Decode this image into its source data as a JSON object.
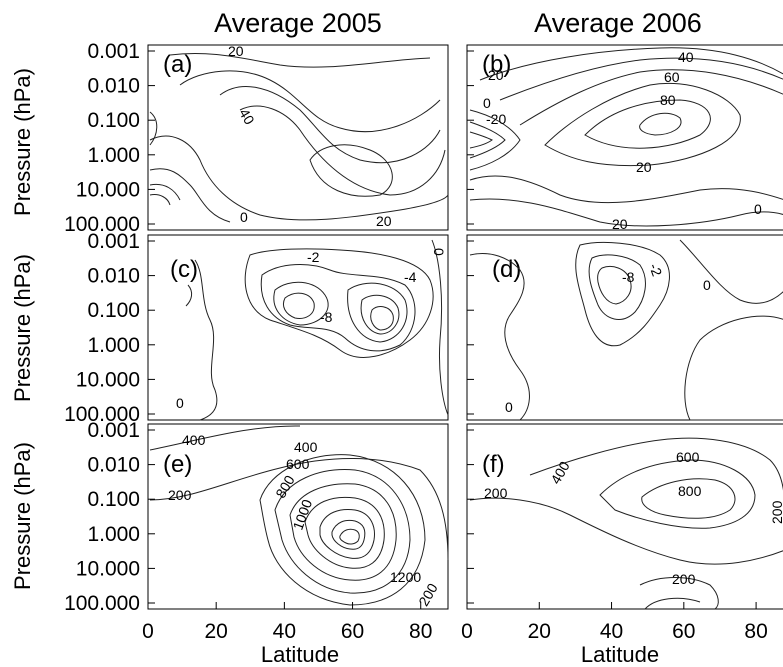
{
  "figure": {
    "column_titles": [
      "Average 2005",
      "Average 2006"
    ],
    "y_axis_title": "Pressure (hPa)",
    "x_axis_title": "Latitude"
  },
  "chart_data": [
    {
      "id": "a",
      "type": "contour",
      "panel_label": "(a)",
      "xlabel": "",
      "ylabel": "Pressure (hPa)",
      "ylim": [
        0.001,
        100.0
      ],
      "y_scale": "log",
      "y_inverted": true,
      "contour_labels": [
        "20",
        "40",
        "20",
        "0"
      ]
    },
    {
      "id": "b",
      "type": "contour",
      "panel_label": "(b)",
      "xlabel": "",
      "ylabel": "",
      "ylim": [
        0.001,
        100.0
      ],
      "y_scale": "log",
      "y_inverted": true,
      "contour_labels": [
        "20",
        "40",
        "60",
        "80",
        "0",
        "-20",
        "20",
        "20",
        "0"
      ]
    },
    {
      "id": "c",
      "type": "contour",
      "panel_label": "(c)",
      "xlabel": "",
      "ylabel": "Pressure (hPa)",
      "ylim": [
        0.001,
        100.0
      ],
      "y_scale": "log",
      "y_inverted": true,
      "contour_labels": [
        "-2",
        "-4",
        "0",
        "-8",
        "0"
      ]
    },
    {
      "id": "d",
      "type": "contour",
      "panel_label": "(d)",
      "xlabel": "",
      "ylabel": "",
      "ylim": [
        0.001,
        100.0
      ],
      "y_scale": "log",
      "y_inverted": true,
      "contour_labels": [
        "-8",
        "-2",
        "0",
        "0"
      ]
    },
    {
      "id": "e",
      "type": "contour",
      "panel_label": "(e)",
      "xlabel": "Latitude",
      "ylabel": "Pressure (hPa)",
      "xlim": [
        0,
        88
      ],
      "ylim": [
        0.001,
        100.0
      ],
      "y_scale": "log",
      "y_inverted": true,
      "contour_labels": [
        "400",
        "400",
        "600",
        "800",
        "200",
        "1000",
        "1200",
        "200"
      ]
    },
    {
      "id": "f",
      "type": "contour",
      "panel_label": "(f)",
      "xlabel": "Latitude",
      "ylabel": "",
      "xlim": [
        0,
        88
      ],
      "ylim": [
        0.001,
        100.0
      ],
      "y_scale": "log",
      "y_inverted": true,
      "contour_labels": [
        "400",
        "600",
        "800",
        "200",
        "200",
        "200"
      ]
    }
  ],
  "y_ticks": [
    "0.001",
    "0.010",
    "0.100",
    "1.000",
    "10.000",
    "100.000"
  ],
  "x_ticks_left": [
    "0",
    "20",
    "40",
    "60",
    "80"
  ],
  "x_ticks_right": [
    "0",
    "20",
    "40",
    "60",
    "80"
  ]
}
